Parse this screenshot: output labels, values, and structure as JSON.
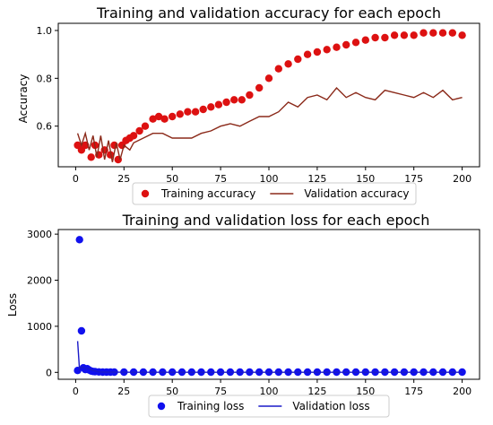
{
  "chart_data": [
    {
      "type": "line",
      "title": "Training and validation accuracy for each epoch",
      "xlabel": "",
      "ylabel": "Accuracy",
      "xlim": [
        -9,
        209
      ],
      "ylim": [
        0.43,
        1.03
      ],
      "xticks": [
        0,
        25,
        50,
        75,
        100,
        125,
        150,
        175,
        200
      ],
      "yticks": [
        0.6,
        0.8,
        1.0
      ],
      "ytick_labels": [
        "0.6",
        "0.8",
        "1.0"
      ],
      "legend_position": "bottom-center",
      "series": [
        {
          "name": "Training accuracy",
          "style": "scatter",
          "color": "#dd1111",
          "x": [
            1,
            3,
            5,
            8,
            10,
            12,
            15,
            18,
            20,
            22,
            24,
            26,
            28,
            30,
            33,
            36,
            40,
            43,
            46,
            50,
            54,
            58,
            62,
            66,
            70,
            74,
            78,
            82,
            86,
            90,
            95,
            100,
            105,
            110,
            115,
            120,
            125,
            130,
            135,
            140,
            145,
            150,
            155,
            160,
            165,
            170,
            175,
            180,
            185,
            190,
            195,
            200
          ],
          "y": [
            0.52,
            0.5,
            0.52,
            0.47,
            0.52,
            0.48,
            0.5,
            0.48,
            0.52,
            0.46,
            0.52,
            0.54,
            0.55,
            0.56,
            0.58,
            0.6,
            0.63,
            0.64,
            0.63,
            0.64,
            0.65,
            0.66,
            0.66,
            0.67,
            0.68,
            0.69,
            0.7,
            0.71,
            0.71,
            0.73,
            0.76,
            0.8,
            0.84,
            0.86,
            0.88,
            0.9,
            0.91,
            0.92,
            0.93,
            0.94,
            0.95,
            0.96,
            0.97,
            0.97,
            0.98,
            0.98,
            0.98,
            0.99,
            0.99,
            0.99,
            0.99,
            0.98
          ]
        },
        {
          "name": "Validation accuracy",
          "style": "line",
          "color": "#8b2a1a",
          "x": [
            1,
            3,
            5,
            7,
            9,
            11,
            13,
            15,
            17,
            19,
            21,
            23,
            25,
            28,
            30,
            35,
            40,
            45,
            50,
            55,
            60,
            65,
            70,
            75,
            80,
            85,
            90,
            95,
            100,
            105,
            110,
            115,
            120,
            125,
            130,
            135,
            140,
            145,
            150,
            155,
            160,
            165,
            170,
            175,
            180,
            185,
            190,
            195,
            200
          ],
          "y": [
            0.57,
            0.52,
            0.57,
            0.5,
            0.56,
            0.47,
            0.56,
            0.46,
            0.54,
            0.45,
            0.53,
            0.46,
            0.52,
            0.5,
            0.53,
            0.55,
            0.57,
            0.57,
            0.55,
            0.55,
            0.55,
            0.57,
            0.58,
            0.6,
            0.61,
            0.6,
            0.62,
            0.64,
            0.64,
            0.66,
            0.7,
            0.68,
            0.72,
            0.73,
            0.71,
            0.76,
            0.72,
            0.74,
            0.72,
            0.71,
            0.75,
            0.74,
            0.73,
            0.72,
            0.74,
            0.72,
            0.75,
            0.71,
            0.72
          ]
        }
      ]
    },
    {
      "type": "line",
      "title": "Training and validation loss for each epoch",
      "xlabel": "",
      "ylabel": "Loss",
      "xlim": [
        -9,
        209
      ],
      "ylim": [
        -150,
        3100
      ],
      "xticks": [
        0,
        25,
        50,
        75,
        100,
        125,
        150,
        175,
        200
      ],
      "yticks": [
        0,
        1000,
        2000,
        3000
      ],
      "ytick_labels": [
        "0",
        "1000",
        "2000",
        "3000"
      ],
      "legend_position": "bottom-center",
      "series": [
        {
          "name": "Training loss",
          "style": "scatter",
          "color": "#1111ee",
          "x": [
            1,
            2,
            3,
            4,
            5,
            6,
            7,
            8,
            9,
            10,
            12,
            14,
            16,
            18,
            20,
            25,
            30,
            35,
            40,
            45,
            50,
            55,
            60,
            65,
            70,
            75,
            80,
            85,
            90,
            95,
            100,
            105,
            110,
            115,
            120,
            125,
            130,
            135,
            140,
            145,
            150,
            155,
            160,
            165,
            170,
            175,
            180,
            185,
            190,
            195,
            200
          ],
          "y": [
            40,
            2880,
            900,
            100,
            60,
            80,
            50,
            30,
            20,
            15,
            10,
            5,
            5,
            5,
            5,
            5,
            5,
            5,
            5,
            5,
            5,
            5,
            5,
            5,
            5,
            5,
            5,
            5,
            5,
            5,
            5,
            5,
            5,
            5,
            5,
            5,
            5,
            5,
            5,
            5,
            5,
            5,
            5,
            5,
            5,
            5,
            5,
            5,
            5,
            5,
            5
          ]
        },
        {
          "name": "Validation loss",
          "style": "line",
          "color": "#1a1ac8",
          "x": [
            1,
            2,
            3,
            5,
            7,
            9,
            12,
            15,
            20,
            30,
            50,
            100,
            150,
            200
          ],
          "y": [
            680,
            60,
            120,
            90,
            80,
            40,
            10,
            5,
            3,
            2,
            2,
            2,
            2,
            2
          ]
        }
      ]
    }
  ]
}
